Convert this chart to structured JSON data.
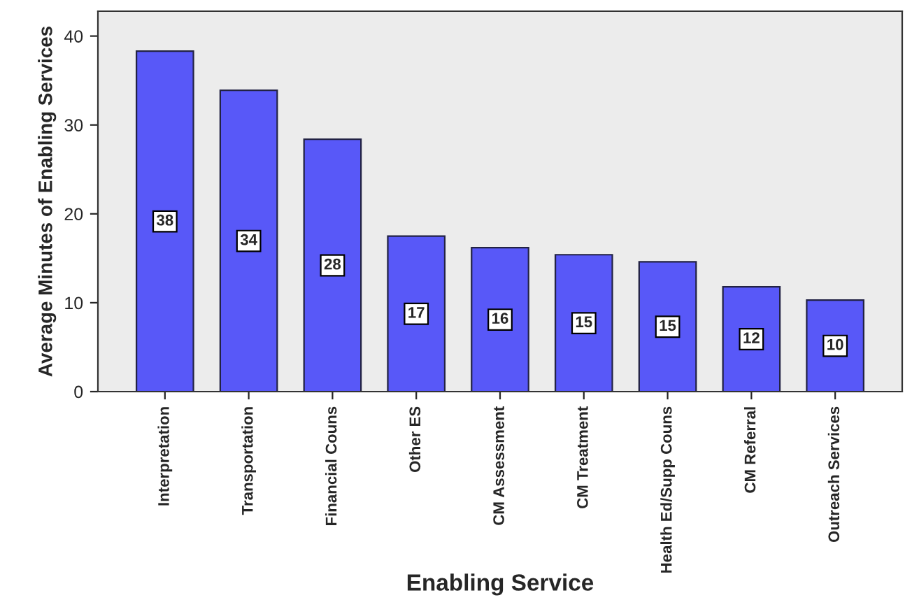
{
  "chart_data": {
    "type": "bar",
    "xlabel": "Enabling Service",
    "ylabel": "Average Minutes of Enabling Services",
    "categories": [
      "Interpretation",
      "Transportation",
      "Financial Couns",
      "Other ES",
      "CM Assessment",
      "CM Treatment",
      "Health Ed/Supp Couns",
      "CM Referral",
      "Outreach Services"
    ],
    "values": [
      38.3,
      33.9,
      28.4,
      17.5,
      16.2,
      15.4,
      14.6,
      11.8,
      10.3
    ],
    "value_labels": [
      "38",
      "34",
      "28",
      "17",
      "16",
      "15",
      "15",
      "12",
      "10"
    ],
    "color": "#5858f8",
    "ylim": [
      0,
      42.8
    ],
    "yticks": [
      0,
      10,
      20,
      30,
      40
    ],
    "grid": false,
    "legend": false
  }
}
